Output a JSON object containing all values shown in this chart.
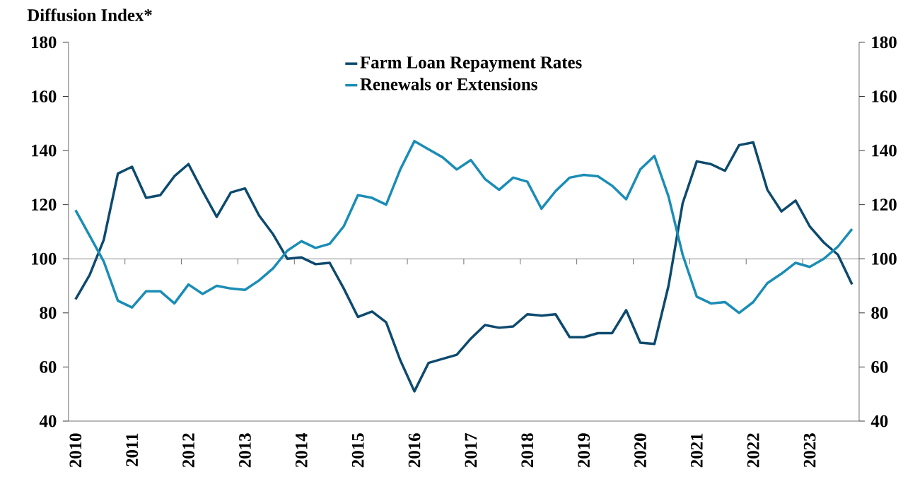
{
  "chart_data": {
    "type": "line",
    "ylabel": "Diffusion Index*",
    "categories": [
      "2010",
      null,
      null,
      null,
      "2011",
      null,
      null,
      null,
      "2012",
      null,
      null,
      null,
      "2013",
      null,
      null,
      null,
      "2014",
      null,
      null,
      null,
      "2015",
      null,
      null,
      null,
      "2016",
      null,
      null,
      null,
      "2017",
      null,
      null,
      null,
      "2018",
      null,
      null,
      null,
      "2019",
      null,
      null,
      null,
      "2020",
      null,
      null,
      null,
      "2021",
      null,
      null,
      null,
      "2022",
      null,
      null,
      null,
      "2023",
      null,
      null,
      null
    ],
    "series": [
      {
        "name": "Farm Loan Repayment Rates",
        "color": "#0d4a6e",
        "values": [
          85,
          94,
          107,
          131.5,
          134,
          122.5,
          123.5,
          130.5,
          135,
          125,
          115.5,
          124.5,
          126,
          116,
          109,
          100,
          100.5,
          98,
          98.5,
          89,
          78.5,
          80.5,
          76.5,
          62.5,
          51,
          61.5,
          63,
          64.5,
          70.5,
          75.5,
          74.5,
          75,
          79.5,
          79,
          79.5,
          71,
          71,
          72.5,
          72.5,
          81,
          69,
          68.5,
          90,
          120.5,
          136,
          135,
          132.5,
          142,
          143,
          125.5,
          117.5,
          121.5,
          112,
          106,
          101.5,
          90.5
        ]
      },
      {
        "name": "Renewals or Extensions",
        "color": "#1a8db5",
        "values": [
          118,
          108.5,
          99,
          84.5,
          82,
          88,
          88,
          83.5,
          90.5,
          87,
          90,
          89,
          88.5,
          92,
          96.5,
          103,
          106.5,
          104,
          105.5,
          112,
          123.5,
          122.5,
          120,
          133,
          143.5,
          140.5,
          137.5,
          133,
          136.5,
          129.5,
          125.5,
          130,
          128.5,
          118.5,
          125,
          130,
          131,
          130.5,
          127,
          122,
          133,
          138,
          123,
          101.5,
          86,
          83.5,
          84,
          80,
          84,
          91,
          94.5,
          98.5,
          97,
          100,
          104.5,
          111
        ]
      }
    ],
    "ylim": [
      40,
      180
    ],
    "yticks": [
      40,
      60,
      80,
      100,
      120,
      140,
      160,
      180
    ],
    "y2lim": [
      40,
      180
    ],
    "y2ticks": [
      40,
      60,
      80,
      100,
      120,
      140,
      160,
      180
    ],
    "ref_lines": [
      {
        "axis": "y",
        "value": 100,
        "color": "#555555"
      }
    ],
    "legend": "top",
    "marker": "none",
    "line_style": "solid",
    "grid": false
  }
}
